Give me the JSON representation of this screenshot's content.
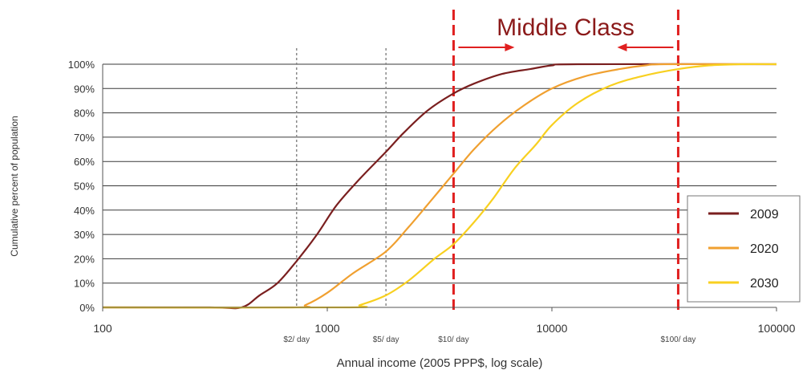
{
  "chart_data": {
    "type": "line",
    "title": "Middle Class",
    "xlabel": "Annual income (2005 PPP$, log scale)",
    "ylabel": "Cumulative percent of population",
    "xscale": "log",
    "xlim": [
      100,
      100000
    ],
    "ylim": [
      0,
      100
    ],
    "x_ticks": [
      {
        "value": 100,
        "label": "100"
      },
      {
        "value": 1000,
        "label": "1000"
      },
      {
        "value": 10000,
        "label": "10000"
      },
      {
        "value": 100000,
        "label": "100000"
      }
    ],
    "y_ticks": [
      {
        "value": 0,
        "label": "0%"
      },
      {
        "value": 10,
        "label": "10%"
      },
      {
        "value": 20,
        "label": "20%"
      },
      {
        "value": 30,
        "label": "30%"
      },
      {
        "value": 40,
        "label": "40%"
      },
      {
        "value": 50,
        "label": "50%"
      },
      {
        "value": 60,
        "label": "60%"
      },
      {
        "value": 70,
        "label": "70%"
      },
      {
        "value": 80,
        "label": "80%"
      },
      {
        "value": 90,
        "label": "90%"
      },
      {
        "value": 100,
        "label": "100%"
      }
    ],
    "grid": "horizontal",
    "legend_position": "right",
    "reference_lines": [
      {
        "x": 730,
        "label": "$2/ day",
        "style": "dotted"
      },
      {
        "x": 1825,
        "label": "$5/ day",
        "style": "dotted"
      },
      {
        "x": 3650,
        "label": "$10/ day",
        "style": "dashed-red"
      },
      {
        "x": 36500,
        "label": "$100/ day",
        "style": "dashed-red"
      }
    ],
    "middle_class_range": [
      3650,
      36500
    ],
    "series": [
      {
        "name": "2009",
        "color": "#7a1f1f",
        "points": [
          [
            100,
            0
          ],
          [
            300,
            0
          ],
          [
            415,
            0
          ],
          [
            500,
            5
          ],
          [
            600,
            10
          ],
          [
            730,
            19
          ],
          [
            900,
            30
          ],
          [
            1100,
            42
          ],
          [
            1400,
            53
          ],
          [
            1825,
            64
          ],
          [
            2200,
            72
          ],
          [
            2800,
            81
          ],
          [
            3650,
            88
          ],
          [
            4500,
            92
          ],
          [
            6000,
            96
          ],
          [
            8000,
            98
          ],
          [
            10000,
            99.5
          ],
          [
            13000,
            100
          ],
          [
            100000,
            100
          ]
        ]
      },
      {
        "name": "2020",
        "color": "#f0a030",
        "points": [
          [
            100,
            0
          ],
          [
            700,
            0
          ],
          [
            800,
            1
          ],
          [
            1000,
            6
          ],
          [
            1300,
            14
          ],
          [
            1825,
            23
          ],
          [
            2300,
            33
          ],
          [
            2900,
            44
          ],
          [
            3650,
            55
          ],
          [
            4500,
            65
          ],
          [
            5800,
            75
          ],
          [
            7500,
            83
          ],
          [
            10000,
            90
          ],
          [
            14000,
            95
          ],
          [
            20000,
            98
          ],
          [
            26000,
            99.5
          ],
          [
            32000,
            100
          ],
          [
            100000,
            100
          ]
        ]
      },
      {
        "name": "2030",
        "color": "#f8d020",
        "points": [
          [
            100,
            0
          ],
          [
            1200,
            0
          ],
          [
            1400,
            1
          ],
          [
            1825,
            5
          ],
          [
            2300,
            11
          ],
          [
            3000,
            20
          ],
          [
            3650,
            26
          ],
          [
            4500,
            35
          ],
          [
            5500,
            45
          ],
          [
            6800,
            57
          ],
          [
            8500,
            67
          ],
          [
            10000,
            75
          ],
          [
            13000,
            84
          ],
          [
            18000,
            91
          ],
          [
            25000,
            95
          ],
          [
            36500,
            98
          ],
          [
            50000,
            99.5
          ],
          [
            70000,
            100
          ],
          [
            100000,
            100
          ]
        ]
      }
    ]
  }
}
